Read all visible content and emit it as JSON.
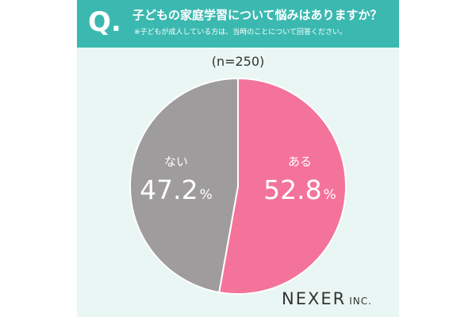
{
  "header": {
    "q_mark": "Q.",
    "title": "子どもの家庭学習について悩みはありますか？",
    "note": "※子どもが成人している方は、当時のことについて回答ください。"
  },
  "sample_size": "(n=250)",
  "logo": {
    "name": "NEXER",
    "suffix": "INC."
  },
  "colors": {
    "header": "#3bb9b0",
    "background": "#eaf6f3",
    "yes_slice": "#f4739b",
    "no_slice": "#9e9c9d"
  },
  "chart_data": {
    "type": "pie",
    "title": "子どもの家庭学習について悩みはありますか？",
    "categories": [
      "ある",
      "ない"
    ],
    "values": [
      52.8,
      47.2
    ],
    "value_labels": [
      "52.8",
      "47.2"
    ],
    "unit": "%",
    "colors": [
      "#f4739b",
      "#9e9c9d"
    ]
  }
}
